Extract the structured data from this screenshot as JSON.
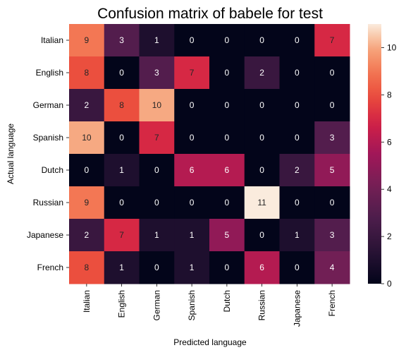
{
  "chart_data": {
    "type": "heatmap",
    "title": "Confusion matrix of babele for test",
    "xlabel": "Predicted language",
    "ylabel": "Actual language",
    "row_labels": [
      "Italian",
      "English",
      "German",
      "Spanish",
      "Dutch",
      "Russian",
      "Japanese",
      "French"
    ],
    "col_labels": [
      "Italian",
      "English",
      "German",
      "Spanish",
      "Dutch",
      "Russian",
      "Japanese",
      "French"
    ],
    "values": [
      [
        9,
        3,
        1,
        0,
        0,
        0,
        0,
        7
      ],
      [
        8,
        0,
        3,
        7,
        0,
        2,
        0,
        0
      ],
      [
        2,
        8,
        10,
        0,
        0,
        0,
        0,
        0
      ],
      [
        10,
        0,
        7,
        0,
        0,
        0,
        0,
        3
      ],
      [
        0,
        1,
        0,
        6,
        6,
        0,
        2,
        5
      ],
      [
        9,
        0,
        0,
        0,
        0,
        11,
        0,
        0
      ],
      [
        2,
        7,
        1,
        1,
        5,
        0,
        1,
        3
      ],
      [
        8,
        1,
        0,
        1,
        0,
        6,
        0,
        4
      ]
    ],
    "vmin": 0,
    "vmax": 11,
    "colormap": "rocket",
    "colorbar_ticks": [
      0,
      2,
      4,
      6,
      8,
      10
    ]
  }
}
